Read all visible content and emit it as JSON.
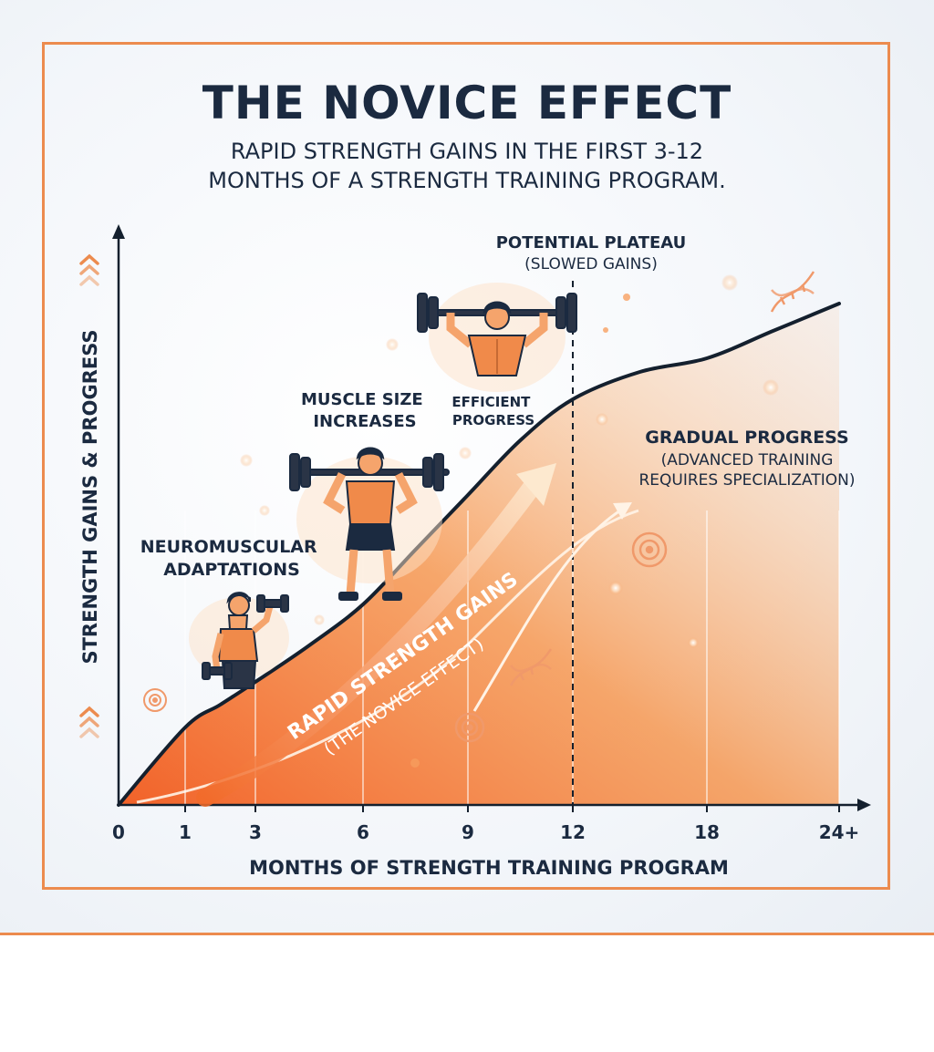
{
  "colors": {
    "accent": "#ec8b4e",
    "primary_text": "#1b2a40",
    "curve": "#14202e",
    "band_orange": "#f26b2a"
  },
  "header": {
    "title": "THE NOVICE EFFECT",
    "subtitle_line_1": "RAPID STRENGTH GAINS IN THE FIRST 3-12",
    "subtitle_line_2": "MONTHS OF A STRENGTH TRAINING PROGRAM."
  },
  "chart_data": {
    "type": "line",
    "xlabel": "MONTHS OF STRENGTH TRAINING PROGRAM",
    "ylabel": "STRENGTH GAINS & PROGRESS",
    "x_tick_labels": [
      "0",
      "1",
      "3",
      "6",
      "9",
      "12",
      "18",
      "24+"
    ],
    "x_tick_values": [
      0,
      1,
      3,
      6,
      9,
      12,
      18,
      24
    ],
    "grid": false,
    "y_axis_ticks": false,
    "series": [
      {
        "x": [
          0,
          1,
          2,
          3,
          4.5,
          6,
          7.5,
          9,
          10.5,
          12,
          15,
          18,
          21,
          24
        ],
        "y": [
          0,
          17,
          22,
          27,
          35,
          44,
          56,
          68,
          80,
          89,
          95,
          98,
          104,
          110
        ]
      }
    ],
    "y_range": [
      0,
      140
    ],
    "x_range": [
      0,
      24
    ],
    "plateau_marker_x": 12,
    "annotations": {
      "neuromuscular": "NEUROMUSCULAR\nADAPTATIONS",
      "muscle_size": "MUSCLE SIZE\nINCREASES",
      "efficient": "EFFICIENT\nPROGRESS",
      "plateau_title": "POTENTIAL PLATEAU",
      "plateau_sub": "(SLOWED GAINS)",
      "gradual_title": "GRADUAL PROGRESS",
      "gradual_sub_1": "(ADVANCED TRAINING",
      "gradual_sub_2": "REQUIRES SPECIALIZATION)",
      "band_line_1": "RAPID STRENGTH GAINS",
      "band_line_2": "(THE NOVICE EFFECT)"
    }
  },
  "icons": [
    "chevrons-up-icon",
    "lifter-dumbbell-icon",
    "lifter-barbell-icon",
    "lifter-overhead-icon",
    "weight-plate-icon",
    "dna-icon",
    "trend-arrow-icon"
  ]
}
